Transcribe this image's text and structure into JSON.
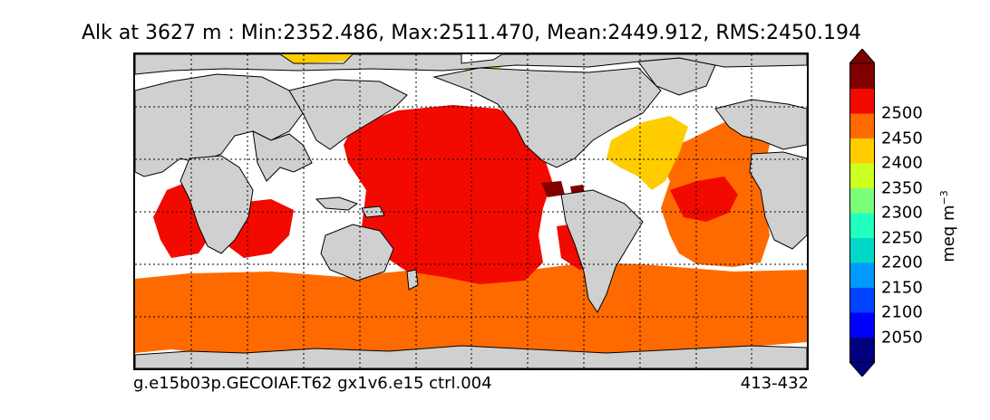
{
  "title": "Alk at 3627 m : Min:2352.486, Max:2511.470, Mean:2449.912, RMS:2450.194",
  "footer": {
    "case": "g.e15b03p.GECOIAF.T62 gx1v6.e15 ctrl.004",
    "years": "413-432"
  },
  "colorbar": {
    "unit_label": "meq m",
    "unit_exponent": "−3",
    "ticks": [
      "2050",
      "2100",
      "2150",
      "2200",
      "2250",
      "2300",
      "2350",
      "2400",
      "2450",
      "2500"
    ],
    "levels": [
      2000,
      2050,
      2100,
      2150,
      2200,
      2250,
      2300,
      2350,
      2400,
      2450,
      2500,
      2550
    ],
    "colors": [
      "#000080",
      "#0000ff",
      "#0044ff",
      "#0099ff",
      "#00d8c8",
      "#22ffbe",
      "#7cff78",
      "#ccff22",
      "#ffcc00",
      "#ff6a00",
      "#f20a00",
      "#800000"
    ],
    "extend": "both"
  },
  "map": {
    "land_color": "#d0d0d0",
    "missing_color": "#ffffff",
    "grid": "dotted",
    "projection": "cylindrical"
  }
}
